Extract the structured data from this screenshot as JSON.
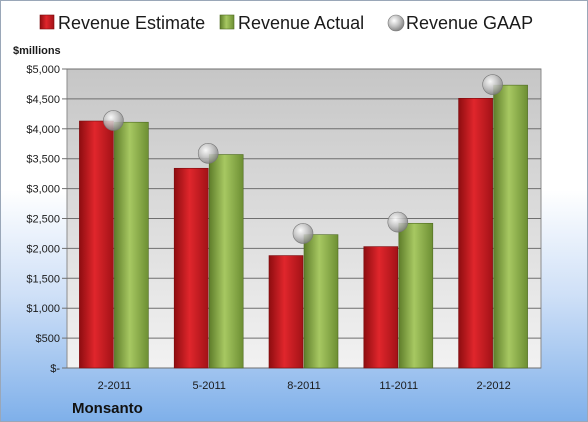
{
  "chart_data": {
    "type": "bar",
    "ylabel": "$millions",
    "company": "Monsanto",
    "categories": [
      "2-2011",
      "5-2011",
      "8-2011",
      "11-2011",
      "2-2012"
    ],
    "ylim": [
      0,
      5000
    ],
    "yticks": [
      0,
      500,
      1000,
      1500,
      2000,
      2500,
      3000,
      3500,
      4000,
      4500,
      5000
    ],
    "ytick_labels": [
      "$-",
      "$500",
      "$1,000",
      "$1,500",
      "$2,000",
      "$2,500",
      "$3,000",
      "$3,500",
      "$4,000",
      "$4,500",
      "$5,000"
    ],
    "grid": true,
    "legend_position": "top",
    "series": [
      {
        "name": "Revenue Estimate",
        "type": "bar",
        "color": "#c8171d",
        "values": [
          4130,
          3340,
          1880,
          2030,
          4510
        ]
      },
      {
        "name": "Revenue Actual",
        "type": "bar",
        "color": "#8fb54a",
        "values": [
          4110,
          3570,
          2230,
          2420,
          4730
        ]
      },
      {
        "name": "Revenue GAAP",
        "type": "marker",
        "color": "#b8b8b8",
        "values": [
          4140,
          3590,
          2250,
          2440,
          4740
        ]
      }
    ]
  }
}
